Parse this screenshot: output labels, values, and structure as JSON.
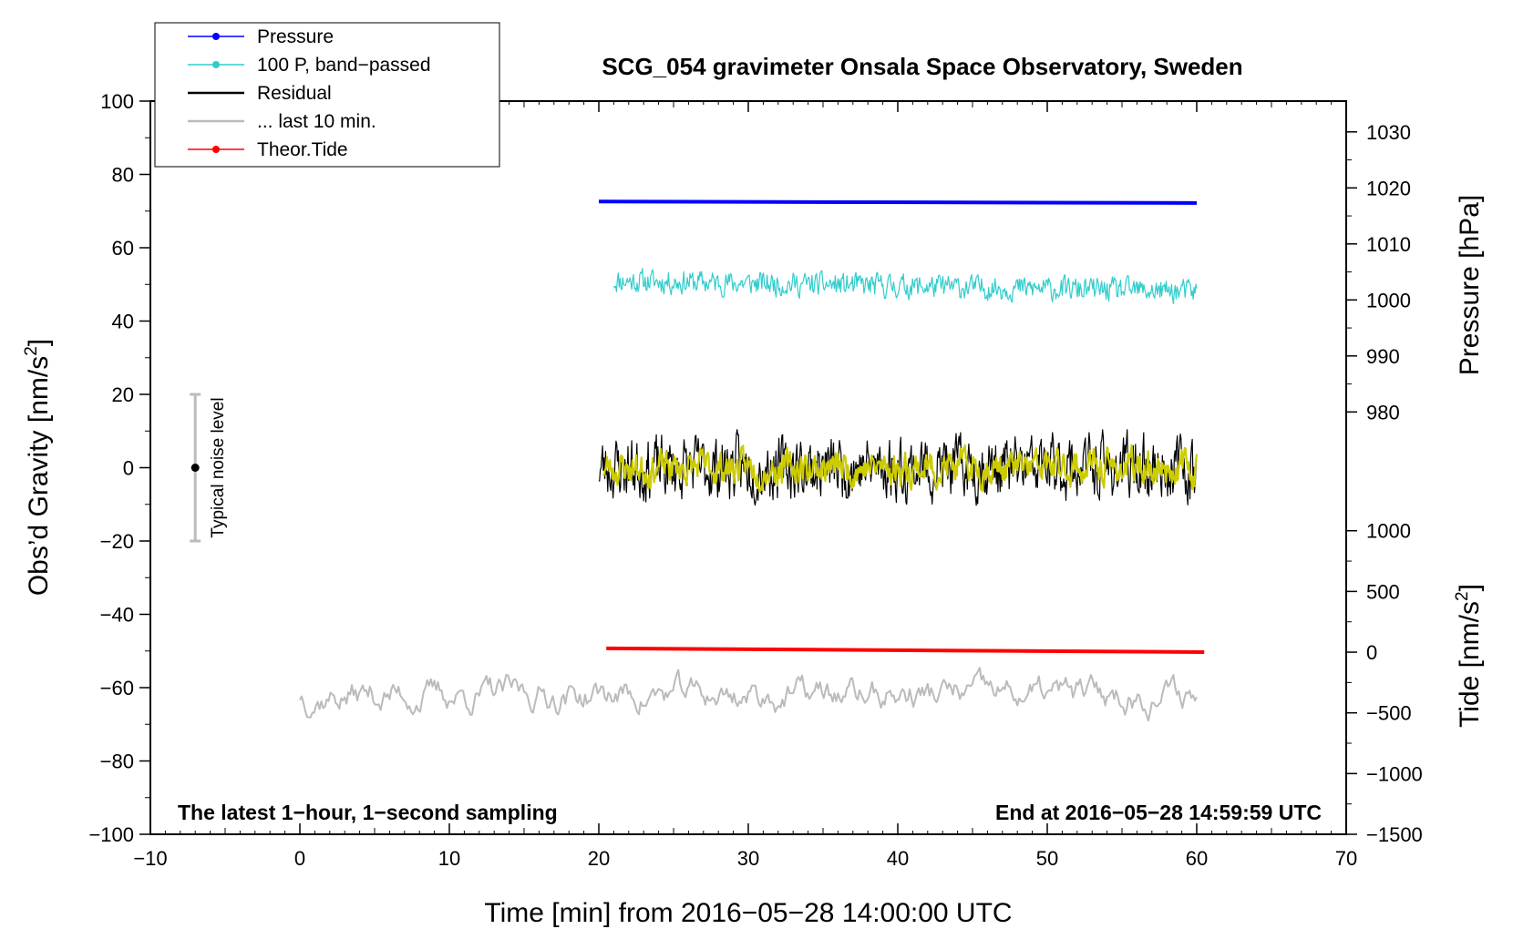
{
  "chart_data": {
    "type": "line",
    "title": "SCG_054 gravimeter Onsala Space Observatory, Sweden",
    "xlabel": "Time [min] from 2016−05−28 14:00:00 UTC",
    "ylabel_left": "Obs’d Gravity [nm/s",
    "ylabel_left_sup": "2",
    "ylabel_left_close": "]",
    "ylabel_right_pressure": "Pressure [hPa]",
    "ylabel_right_tide": "Tide [nm/s",
    "ylabel_right_tide_sup": "2",
    "ylabel_right_tide_close": "]",
    "note_left": "The latest 1−hour, 1−second sampling",
    "note_right": "End at 2016−05−28 14:59:59 UTC",
    "noise_label": "Typical noise level",
    "xlim": [
      -10,
      70
    ],
    "ylim": [
      -100,
      100
    ],
    "x_ticks": [
      -10,
      0,
      10,
      20,
      30,
      40,
      50,
      60,
      70
    ],
    "x_tick_labels": [
      "−10",
      "0",
      "10",
      "20",
      "30",
      "40",
      "50",
      "60",
      "70"
    ],
    "y_ticks": [
      -100,
      -80,
      -60,
      -40,
      -20,
      0,
      20,
      40,
      60,
      80,
      100
    ],
    "y_tick_labels": [
      "−100",
      "−80",
      "−60",
      "−40",
      "−20",
      "0",
      "20",
      "40",
      "60",
      "80",
      "100"
    ],
    "pressure_axis": {
      "ticks": [
        980,
        990,
        1000,
        1010,
        1020,
        1030
      ],
      "tick_labels": [
        "980",
        "990",
        "1000",
        "1010",
        "1020",
        "1030"
      ],
      "range_hPa": [
        980,
        1030
      ],
      "maps_to_left": [
        15.2,
        91.6
      ]
    },
    "tide_axis": {
      "ticks": [
        -1500,
        -1000,
        -500,
        0,
        500,
        1000
      ],
      "tick_labels": [
        "−1500",
        "−1000",
        "−500",
        "0",
        "500",
        "1000"
      ],
      "range": [
        -1500,
        1000
      ],
      "maps_to_left": [
        -100,
        -17.2
      ]
    },
    "noise_bar": {
      "x": -7,
      "center": 0,
      "low": -20,
      "high": 20
    },
    "legend": [
      {
        "label": "Pressure",
        "color": "#0000ff",
        "marker": true
      },
      {
        "label": "100 P, band−passed",
        "color": "#33cccc",
        "marker": true
      },
      {
        "label": "Residual",
        "color": "#000000",
        "marker": false
      },
      {
        "label": "... last 10 min.",
        "color": "#bbbbbb",
        "marker": false
      },
      {
        "label": "Theor.Tide",
        "color": "#ff0000",
        "marker": true
      }
    ],
    "series": [
      {
        "name": "Pressure",
        "color": "#0000ff",
        "x_range": [
          20,
          60
        ],
        "level": 72.6,
        "end_level": 72.2,
        "style": "flat"
      },
      {
        "name": "100 P, band−passed",
        "color": "#33cccc",
        "x_range": [
          21,
          60
        ],
        "level": 51,
        "end_level": 48,
        "amp": 3,
        "style": "noise"
      },
      {
        "name": "Residual",
        "color": "#000000",
        "x_range": [
          20,
          60
        ],
        "level": 0,
        "amp": 8,
        "style": "noise"
      },
      {
        "name": "Residual smoothed",
        "color": "#cccc00",
        "x_range": [
          20.3,
          60
        ],
        "level": 0,
        "amp": 5,
        "style": "noise"
      },
      {
        "name": "... last 10 min.",
        "color": "#bbbbbb",
        "x_range": [
          0,
          60
        ],
        "level": -62,
        "amp": 7,
        "style": "noise"
      },
      {
        "name": "Theor.Tide",
        "color": "#ff0000",
        "x_range": [
          20.5,
          60.5
        ],
        "level": -49.3,
        "end_level": -50.3,
        "style": "flat"
      }
    ]
  }
}
